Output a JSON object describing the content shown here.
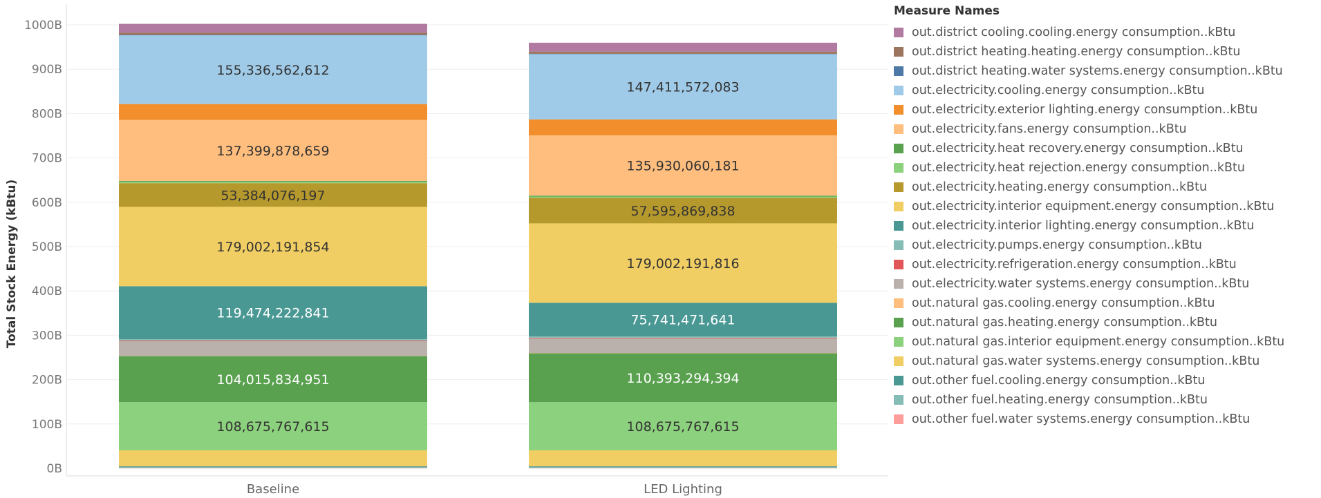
{
  "chart_data": {
    "type": "bar",
    "stacked": true,
    "ylabel": "Total Stock Energy (kBtu)",
    "ylim": [
      0,
      1000000000000
    ],
    "yticks": [
      {
        "value": 0,
        "label": "0B"
      },
      {
        "value": 100000000000,
        "label": "100B"
      },
      {
        "value": 200000000000,
        "label": "200B"
      },
      {
        "value": 300000000000,
        "label": "300B"
      },
      {
        "value": 400000000000,
        "label": "400B"
      },
      {
        "value": 500000000000,
        "label": "500B"
      },
      {
        "value": 600000000000,
        "label": "600B"
      },
      {
        "value": 700000000000,
        "label": "700B"
      },
      {
        "value": 800000000000,
        "label": "800B"
      },
      {
        "value": 900000000000,
        "label": "900B"
      },
      {
        "value": 1000000000000,
        "label": "1000B"
      }
    ],
    "grid": true,
    "legend_position": "right",
    "legend_title": "Measure Names",
    "categories": [
      "Baseline",
      "LED Lighting"
    ],
    "series": [
      {
        "name": "out.district cooling.cooling.energy consumption..kBtu",
        "color": "#b07aa1",
        "values": [
          20000000000,
          20000000000
        ]
      },
      {
        "name": "out.district heating.heating.energy consumption..kBtu",
        "color": "#9c755f",
        "values": [
          5000000000,
          5000000000
        ]
      },
      {
        "name": "out.district heating.water systems.energy consumption..kBtu",
        "color": "#4e79a7",
        "values": [
          500000000,
          500000000
        ]
      },
      {
        "name": "out.electricity.cooling.energy consumption..kBtu",
        "color": "#a0cbe8",
        "values": [
          155336562612,
          147411572083
        ]
      },
      {
        "name": "out.electricity.exterior lighting.energy consumption..kBtu",
        "color": "#f28e2b",
        "values": [
          36000000000,
          36000000000
        ]
      },
      {
        "name": "out.electricity.fans.energy consumption..kBtu",
        "color": "#ffbe7d",
        "values": [
          137399878659,
          135930060181
        ]
      },
      {
        "name": "out.electricity.heat recovery.energy consumption..kBtu",
        "color": "#59a14f",
        "values": [
          2000000000,
          2000000000
        ]
      },
      {
        "name": "out.electricity.heat rejection.energy consumption..kBtu",
        "color": "#8cd17d",
        "values": [
          3000000000,
          3000000000
        ]
      },
      {
        "name": "out.electricity.heating.energy consumption..kBtu",
        "color": "#b6992d",
        "values": [
          53384076197,
          57595869838
        ]
      },
      {
        "name": "out.electricity.interior equipment.energy consumption..kBtu",
        "color": "#f1ce63",
        "values": [
          179002191854,
          179002191816
        ]
      },
      {
        "name": "out.electricity.interior lighting.energy consumption..kBtu",
        "color": "#499894",
        "values": [
          119474222841,
          75741471641
        ]
      },
      {
        "name": "out.electricity.pumps.energy consumption..kBtu",
        "color": "#86bcb6",
        "values": [
          3000000000,
          3000000000
        ]
      },
      {
        "name": "out.electricity.refrigeration.energy consumption..kBtu",
        "color": "#e15759",
        "values": [
          1500000000,
          1500000000
        ]
      },
      {
        "name": "out.electricity.water systems.energy consumption..kBtu",
        "color": "#bab0ac",
        "values": [
          33000000000,
          33000000000
        ]
      },
      {
        "name": "out.natural gas.cooling.energy consumption..kBtu",
        "color": "#ffbe7d",
        "values": [
          500000000,
          500000000
        ]
      },
      {
        "name": "out.natural gas.heating.energy consumption..kBtu",
        "color": "#59a14f",
        "values": [
          104015834951,
          110393294394
        ]
      },
      {
        "name": "out.natural gas.interior equipment.energy consumption..kBtu",
        "color": "#8cd17d",
        "values": [
          108675767615,
          108675767615
        ]
      },
      {
        "name": "out.natural gas.water systems.energy consumption..kBtu",
        "color": "#f1ce63",
        "values": [
          36000000000,
          36000000000
        ]
      },
      {
        "name": "out.other fuel.cooling.energy consumption..kBtu",
        "color": "#499894",
        "values": [
          2000000000,
          2000000000
        ]
      },
      {
        "name": "out.other fuel.heating.energy consumption..kBtu",
        "color": "#86bcb6",
        "values": [
          2000000000,
          2000000000
        ]
      },
      {
        "name": "out.other fuel.water systems.energy consumption..kBtu",
        "color": "#ff9d9a",
        "values": [
          500000000,
          500000000
        ]
      }
    ],
    "data_labels": [
      {
        "category": "Baseline",
        "series": "out.electricity.cooling.energy consumption..kBtu",
        "text": "155,336,562,612",
        "color": "#333333"
      },
      {
        "category": "Baseline",
        "series": "out.electricity.fans.energy consumption..kBtu",
        "text": "137,399,878,659",
        "color": "#333333"
      },
      {
        "category": "Baseline",
        "series": "out.electricity.heating.energy consumption..kBtu",
        "text": "53,384,076,197",
        "color": "#333333"
      },
      {
        "category": "Baseline",
        "series": "out.electricity.interior equipment.energy consumption..kBtu",
        "text": "179,002,191,854",
        "color": "#333333"
      },
      {
        "category": "Baseline",
        "series": "out.electricity.interior lighting.energy consumption..kBtu",
        "text": "119,474,222,841",
        "color": "#ffffff"
      },
      {
        "category": "Baseline",
        "series": "out.natural gas.heating.energy consumption..kBtu",
        "text": "104,015,834,951",
        "color": "#ffffff"
      },
      {
        "category": "Baseline",
        "series": "out.natural gas.interior equipment.energy consumption..kBtu",
        "text": "108,675,767,615",
        "color": "#333333"
      },
      {
        "category": "LED Lighting",
        "series": "out.electricity.cooling.energy consumption..kBtu",
        "text": "147,411,572,083",
        "color": "#333333"
      },
      {
        "category": "LED Lighting",
        "series": "out.electricity.fans.energy consumption..kBtu",
        "text": "135,930,060,181",
        "color": "#333333"
      },
      {
        "category": "LED Lighting",
        "series": "out.electricity.heating.energy consumption..kBtu",
        "text": "57,595,869,838",
        "color": "#333333"
      },
      {
        "category": "LED Lighting",
        "series": "out.electricity.interior equipment.energy consumption..kBtu",
        "text": "179,002,191,816",
        "color": "#333333"
      },
      {
        "category": "LED Lighting",
        "series": "out.electricity.interior lighting.energy consumption..kBtu",
        "text": "75,741,471,641",
        "color": "#ffffff"
      },
      {
        "category": "LED Lighting",
        "series": "out.natural gas.heating.energy consumption..kBtu",
        "text": "110,393,294,394",
        "color": "#ffffff"
      },
      {
        "category": "LED Lighting",
        "series": "out.natural gas.interior equipment.energy consumption..kBtu",
        "text": "108,675,767,615",
        "color": "#333333"
      }
    ]
  }
}
